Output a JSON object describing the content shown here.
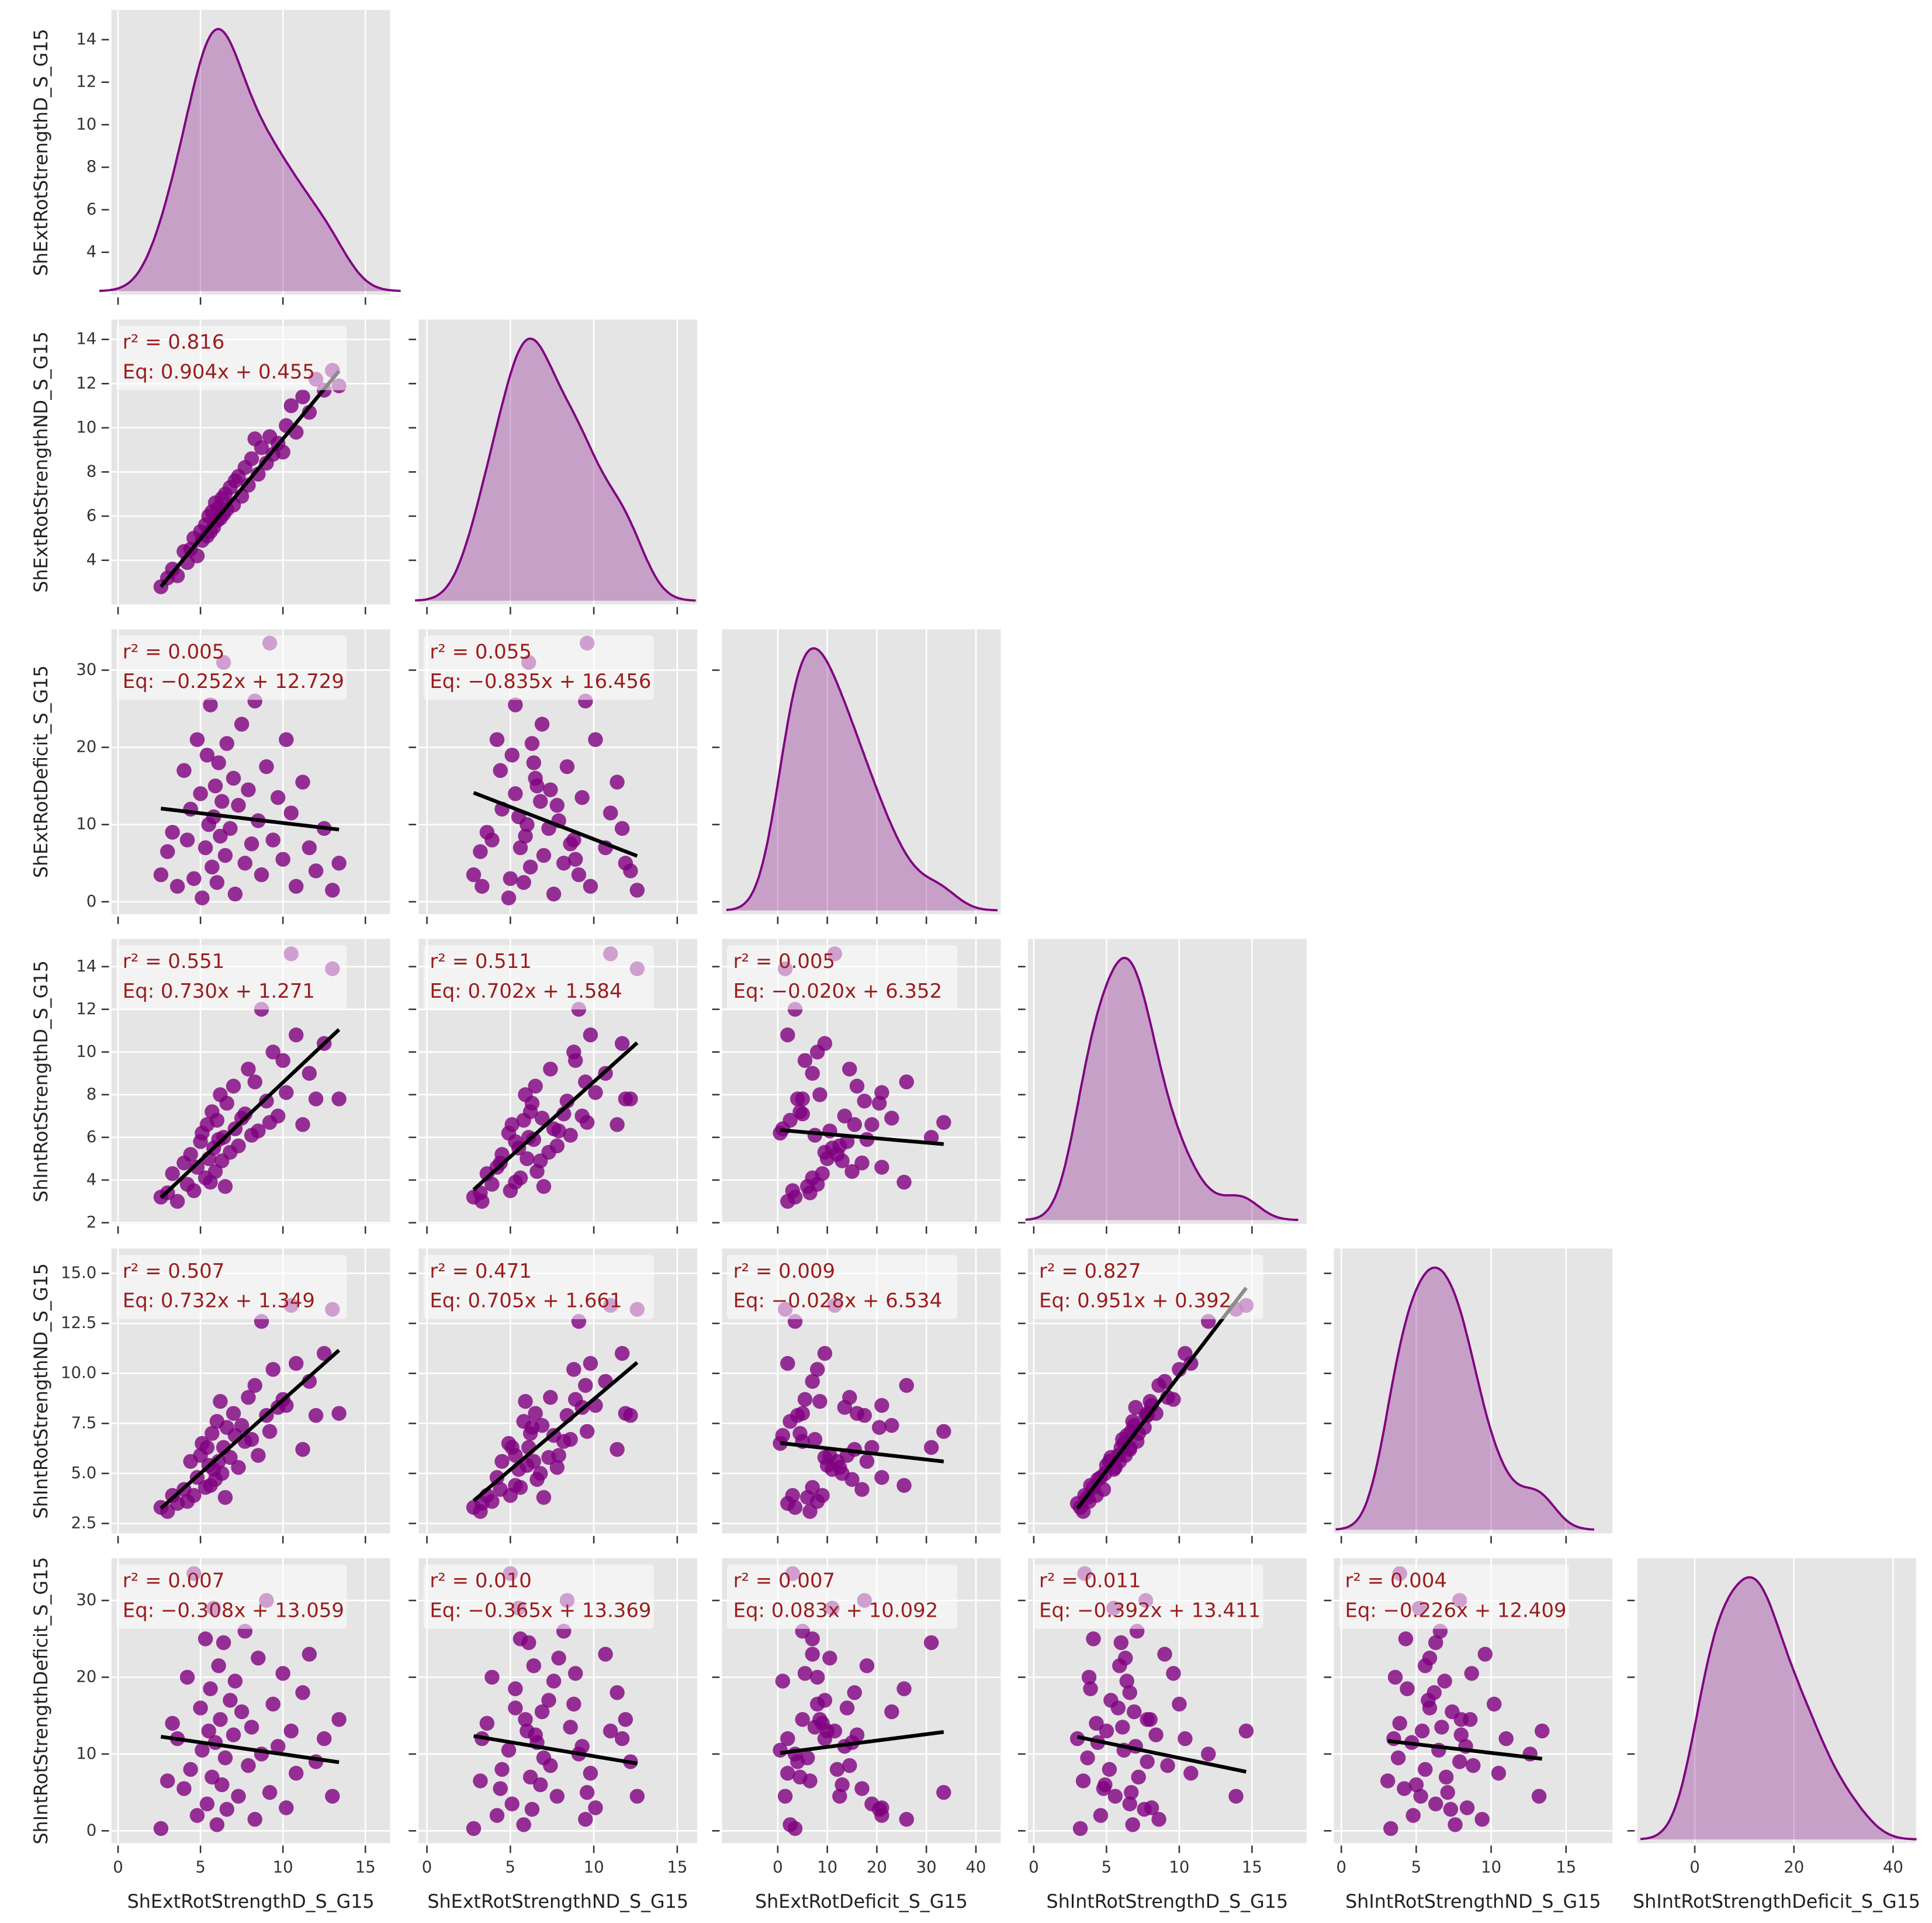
{
  "chart_data": {
    "type": "pairplot",
    "color": "#800080",
    "line_color": "#000000",
    "annotation_color": "#9b1c1c",
    "grid": true,
    "variables": [
      {
        "name": "ShExtRotStrengthD_S_G15",
        "lim": [
          -0.4,
          16.5
        ],
        "ticks": [
          0,
          5,
          10,
          15
        ],
        "yticks": [
          4,
          6,
          8,
          10,
          12,
          14
        ],
        "ylim": [
          2.0,
          15.4
        ],
        "values": [
          2.6,
          3.0,
          3.3,
          3.6,
          4.0,
          4.2,
          4.4,
          4.6,
          4.8,
          5.0,
          5.1,
          5.3,
          5.4,
          5.5,
          5.6,
          5.7,
          5.8,
          5.9,
          6.0,
          6.1,
          6.2,
          6.3,
          6.4,
          6.5,
          6.6,
          6.8,
          7.0,
          7.1,
          7.3,
          7.5,
          7.7,
          7.9,
          8.1,
          8.3,
          8.5,
          8.7,
          9.0,
          9.2,
          9.4,
          9.7,
          10.0,
          10.2,
          10.5,
          10.8,
          11.2,
          11.6,
          12.0,
          12.5,
          13.0,
          13.4
        ]
      },
      {
        "name": "ShExtRotStrengthND_S_G15",
        "lim": [
          -0.5,
          16.2
        ],
        "ticks": [
          0,
          5,
          10,
          15
        ],
        "yticks": [
          4,
          6,
          8,
          10,
          12,
          14
        ],
        "ylim": [
          2.0,
          14.9
        ],
        "values": [
          2.8,
          3.2,
          3.6,
          3.3,
          4.4,
          3.9,
          4.5,
          5.0,
          4.2,
          5.3,
          4.9,
          5.6,
          5.1,
          6.0,
          5.3,
          6.2,
          5.5,
          6.6,
          5.8,
          6.4,
          5.9,
          6.8,
          6.1,
          7.0,
          6.3,
          7.3,
          6.5,
          7.6,
          7.8,
          6.9,
          8.2,
          7.4,
          8.6,
          9.5,
          7.9,
          9.1,
          8.4,
          9.6,
          8.8,
          9.3,
          8.9,
          10.1,
          11.0,
          9.8,
          11.4,
          10.7,
          12.2,
          11.7,
          12.6,
          11.9
        ]
      },
      {
        "name": "ShExtRotDeficit_S_G15",
        "lim": [
          -11.25,
          45
        ],
        "ticks": [
          0,
          10,
          20,
          30,
          40
        ],
        "yticks": [
          0,
          10,
          20,
          30
        ],
        "ylim": [
          -1.6,
          35.3
        ],
        "values": [
          3.5,
          6.5,
          9.0,
          2.0,
          17.0,
          8.0,
          12.0,
          3.0,
          21.0,
          14.0,
          0.5,
          7.0,
          19.0,
          10.0,
          25.5,
          4.5,
          11.0,
          15.0,
          2.5,
          18.0,
          8.5,
          13.0,
          31.0,
          6.0,
          20.5,
          9.5,
          16.0,
          1.0,
          12.5,
          23.0,
          5.0,
          14.5,
          7.5,
          26.0,
          10.5,
          3.5,
          17.5,
          33.5,
          8.0,
          13.5,
          5.5,
          21.0,
          11.5,
          2.0,
          15.5,
          7.0,
          4.0,
          9.5,
          1.5,
          5.0
        ]
      },
      {
        "name": "ShIntRotStrengthD_S_G15",
        "lim": [
          -0.4,
          18.75
        ],
        "ticks": [
          0,
          5,
          10,
          15
        ],
        "yticks": [
          2,
          4,
          6,
          8,
          10,
          12,
          14
        ],
        "ylim": [
          1.95,
          15.3
        ],
        "values": [
          3.2,
          3.4,
          4.3,
          3.0,
          4.8,
          3.8,
          5.2,
          3.5,
          4.6,
          5.8,
          6.2,
          4.1,
          6.6,
          5.0,
          3.9,
          7.2,
          5.5,
          4.4,
          6.8,
          5.9,
          8.0,
          4.9,
          6.0,
          3.7,
          7.6,
          5.3,
          8.4,
          6.4,
          5.6,
          6.9,
          7.1,
          9.2,
          6.1,
          8.6,
          6.3,
          12.0,
          7.7,
          6.7,
          10.0,
          7.0,
          9.6,
          8.1,
          14.6,
          10.8,
          6.6,
          9.0,
          7.8,
          10.4,
          13.9,
          7.8
        ]
      },
      {
        "name": "ShIntRotStrengthND_S_G15",
        "lim": [
          -0.5,
          18.1
        ],
        "ticks": [
          0,
          5,
          10,
          15
        ],
        "yticks": [
          2.5,
          {
            "value": 5,
            "label": "5.0"
          },
          7.5,
          {
            "value": 10,
            "label": "10.0"
          },
          12.5,
          {
            "value": 15,
            "label": "15.0"
          }
        ],
        "ylim": [
          2.0,
          16.24
        ],
        "values": [
          3.3,
          3.1,
          3.9,
          3.5,
          4.2,
          3.6,
          5.6,
          3.9,
          4.8,
          5.9,
          6.5,
          4.3,
          6.3,
          5.4,
          4.4,
          7.0,
          5.2,
          4.7,
          7.6,
          5.6,
          8.6,
          5.0,
          6.3,
          3.8,
          7.3,
          5.8,
          8.0,
          6.9,
          5.3,
          7.4,
          6.6,
          8.8,
          6.7,
          9.4,
          5.9,
          12.6,
          7.9,
          7.1,
          10.2,
          8.3,
          8.7,
          8.4,
          13.4,
          10.5,
          6.2,
          9.6,
          7.9,
          11.0,
          13.2,
          8.0
        ]
      },
      {
        "name": "ShIntRotStrengthDeficit_S_G15",
        "lim": [
          -11.6,
          44.6
        ],
        "ticks": [
          0,
          20,
          40
        ],
        "yticks": [
          0,
          10,
          20,
          30
        ],
        "ylim": [
          -1.6,
          35.5
        ],
        "values": [
          0.3,
          6.5,
          14.0,
          12.0,
          5.5,
          20.0,
          8.0,
          33.5,
          2.0,
          16.0,
          10.5,
          25.0,
          3.5,
          13.0,
          18.5,
          7.0,
          29.0,
          11.5,
          0.8,
          21.5,
          14.5,
          6.0,
          24.5,
          9.5,
          2.8,
          17.0,
          12.5,
          19.5,
          4.5,
          15.5,
          26.0,
          8.5,
          13.5,
          1.5,
          22.5,
          10.0,
          30.0,
          5.0,
          16.5,
          11.0,
          20.5,
          3.0,
          13.0,
          7.5,
          18.0,
          23.0,
          9.0,
          12.0,
          4.5,
          14.5
        ]
      }
    ],
    "panels": [
      {
        "x_variable": 0,
        "y_variable": 1,
        "r2_label": "r² = 0.816",
        "eq_label": "Eq: 0.904x + 0.455",
        "slope": 0.904,
        "intercept": 0.455
      },
      {
        "x_variable": 0,
        "y_variable": 2,
        "r2_label": "r² = 0.005",
        "eq_label": "Eq: −0.252x + 12.729",
        "slope": -0.252,
        "intercept": 12.729
      },
      {
        "x_variable": 1,
        "y_variable": 2,
        "r2_label": "r² = 0.055",
        "eq_label": "Eq: −0.835x + 16.456",
        "slope": -0.835,
        "intercept": 16.456
      },
      {
        "x_variable": 0,
        "y_variable": 3,
        "r2_label": "r² = 0.551",
        "eq_label": "Eq: 0.730x + 1.271",
        "slope": 0.73,
        "intercept": 1.271
      },
      {
        "x_variable": 1,
        "y_variable": 3,
        "r2_label": "r² = 0.511",
        "eq_label": "Eq: 0.702x + 1.584",
        "slope": 0.702,
        "intercept": 1.584
      },
      {
        "x_variable": 2,
        "y_variable": 3,
        "r2_label": "r² = 0.005",
        "eq_label": "Eq: −0.020x + 6.352",
        "slope": -0.02,
        "intercept": 6.352
      },
      {
        "x_variable": 0,
        "y_variable": 4,
        "r2_label": "r² = 0.507",
        "eq_label": "Eq: 0.732x + 1.349",
        "slope": 0.732,
        "intercept": 1.349
      },
      {
        "x_variable": 1,
        "y_variable": 4,
        "r2_label": "r² = 0.471",
        "eq_label": "Eq: 0.705x + 1.661",
        "slope": 0.705,
        "intercept": 1.661
      },
      {
        "x_variable": 2,
        "y_variable": 4,
        "r2_label": "r² = 0.009",
        "eq_label": "Eq: −0.028x + 6.534",
        "slope": -0.028,
        "intercept": 6.534
      },
      {
        "x_variable": 3,
        "y_variable": 4,
        "r2_label": "r² = 0.827",
        "eq_label": "Eq: 0.951x + 0.392",
        "slope": 0.951,
        "intercept": 0.392
      },
      {
        "x_variable": 0,
        "y_variable": 5,
        "r2_label": "r² = 0.007",
        "eq_label": "Eq: −0.308x + 13.059",
        "slope": -0.308,
        "intercept": 13.059
      },
      {
        "x_variable": 1,
        "y_variable": 5,
        "r2_label": "r² = 0.010",
        "eq_label": "Eq: −0.365x + 13.369",
        "slope": -0.365,
        "intercept": 13.369
      },
      {
        "x_variable": 2,
        "y_variable": 5,
        "r2_label": "r² = 0.007",
        "eq_label": "Eq: 0.083x + 10.092",
        "slope": 0.083,
        "intercept": 10.092
      },
      {
        "x_variable": 3,
        "y_variable": 5,
        "r2_label": "r² = 0.011",
        "eq_label": "Eq: −0.392x + 13.411",
        "slope": -0.392,
        "intercept": 13.411
      },
      {
        "x_variable": 4,
        "y_variable": 5,
        "r2_label": "r² = 0.004",
        "eq_label": "Eq: −0.226x + 12.409",
        "slope": -0.226,
        "intercept": 12.409
      }
    ]
  }
}
